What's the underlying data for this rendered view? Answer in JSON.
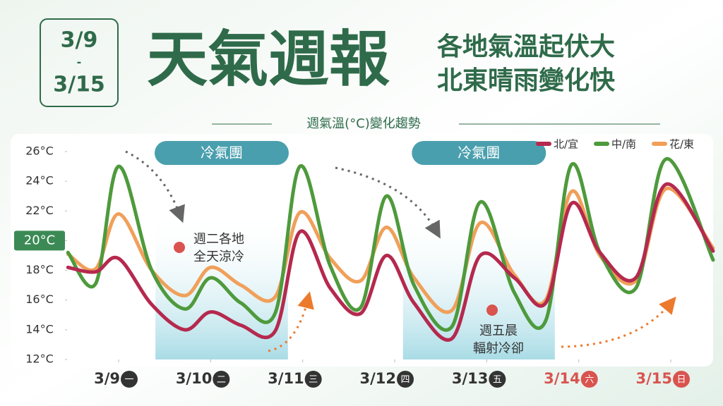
{
  "chart_data": {
    "type": "line",
    "date_range": [
      "3/9",
      "-",
      "3/15"
    ],
    "title": "天氣週報",
    "subtitle": [
      "各地氣溫起伏大",
      "北東晴雨變化快"
    ],
    "caption": "週氣溫(°C)變化趨勢",
    "x": [
      -0.55,
      -0.25,
      0.0,
      0.36,
      0.72,
      1.0,
      1.33,
      1.7,
      1.97,
      2.3,
      2.63,
      2.91,
      3.21,
      3.62,
      3.93,
      4.3,
      4.64,
      4.92,
      5.23,
      5.62,
      5.95,
      6.46
    ],
    "series": [
      {
        "name": "北/宜",
        "color": "#b5294e",
        "values": [
          18.2,
          17.9,
          18.8,
          15.7,
          14.0,
          15.2,
          14.3,
          13.9,
          20.6,
          16.8,
          15.1,
          19.0,
          15.8,
          13.4,
          19.0,
          17.5,
          15.8,
          22.5,
          19.2,
          17.5,
          23.8,
          19.3
        ]
      },
      {
        "name": "中/南",
        "color": "#4e9a3c",
        "values": [
          19.2,
          17.1,
          25.0,
          18.0,
          15.4,
          17.5,
          15.8,
          15.1,
          25.0,
          18.3,
          15.5,
          23.0,
          17.0,
          14.2,
          22.6,
          16.5,
          14.6,
          25.1,
          19.2,
          16.8,
          25.5,
          18.7
        ]
      },
      {
        "name": "花/東",
        "color": "#f0a05a",
        "values": [
          19.1,
          18.1,
          21.8,
          18.0,
          16.3,
          18.2,
          17.0,
          16.2,
          21.9,
          18.8,
          17.3,
          20.9,
          17.5,
          15.3,
          21.2,
          17.7,
          16.0,
          23.3,
          19.0,
          17.3,
          23.5,
          19.5
        ]
      }
    ],
    "xlim": [
      -0.56,
      6.46
    ],
    "xticks": [
      {
        "value": 0,
        "label": "3/9"
      },
      {
        "value": 1,
        "label": "3/10"
      },
      {
        "value": 2,
        "label": "3/11"
      },
      {
        "value": 3,
        "label": "3/12"
      },
      {
        "value": 4,
        "label": "3/13"
      },
      {
        "value": 5,
        "label": "3/14"
      },
      {
        "value": 6,
        "label": "3/15"
      }
    ],
    "weekdays": [
      "一",
      "二",
      "三",
      "四",
      "五",
      "六",
      "日"
    ],
    "xtick_colors": [
      "#333333",
      "#333333",
      "#333333",
      "#333333",
      "#333333",
      "#d9534f",
      "#d9534f"
    ],
    "ylim": [
      12,
      26
    ],
    "yticks": [
      {
        "value": 12,
        "label": "12°C"
      },
      {
        "value": 14,
        "label": "14°C"
      },
      {
        "value": 16,
        "label": "16°C"
      },
      {
        "value": 18,
        "label": "18°C"
      },
      {
        "value": 20,
        "label": "20°C"
      },
      {
        "value": 22,
        "label": "22°C"
      },
      {
        "value": 24,
        "label": "24°C"
      },
      {
        "value": 26,
        "label": "26°C"
      }
    ],
    "highlighted_ytick": 20,
    "shaded_spans": [
      {
        "start": 0.4,
        "end": 1.84,
        "label": "冷氣團"
      },
      {
        "start": 3.09,
        "end": 4.74,
        "label": "冷氣團"
      }
    ],
    "annotations": [
      [
        "週二各地",
        "全天涼冷"
      ],
      [
        "週五晨",
        "輻射冷卻"
      ]
    ]
  }
}
